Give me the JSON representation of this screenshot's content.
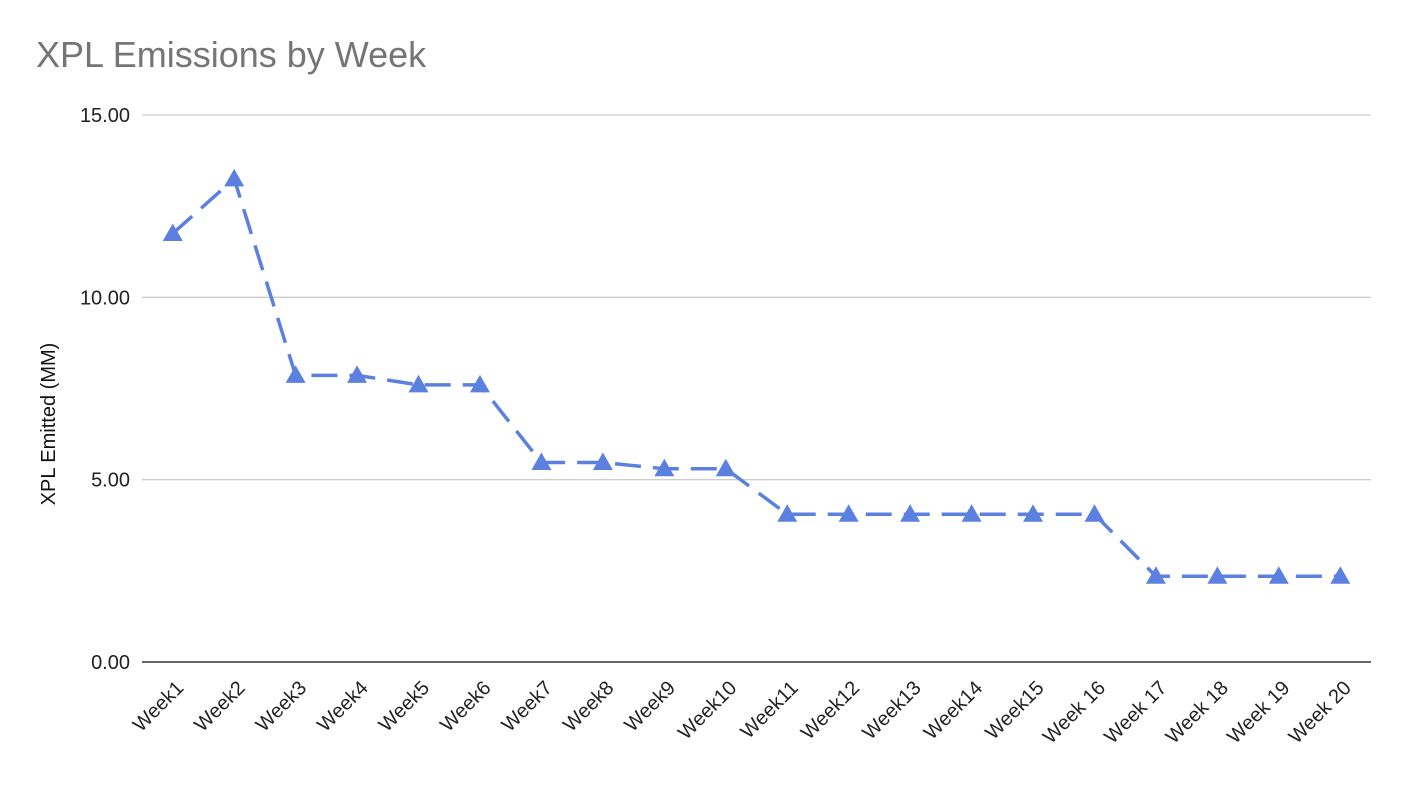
{
  "chart_data": {
    "type": "line",
    "title": "XPL Emissions by Week",
    "xlabel": "",
    "ylabel": "XPL Emitted (MM)",
    "ylim": [
      0,
      15
    ],
    "yticks": [
      "0.00",
      "5.00",
      "10.00",
      "15.00"
    ],
    "grid": true,
    "legend": "none",
    "categories": [
      "Week1",
      "Week2",
      "Week3",
      "Week4",
      "Week5",
      "Week6",
      "Week7",
      "Week8",
      "Week9",
      "Week10",
      "Week11",
      "Week12",
      "Week13",
      "Week14",
      "Week15",
      "Week 16",
      "Week 17",
      "Week 18",
      "Week 19",
      "Week 20"
    ],
    "series": [
      {
        "color": "#5b80e0",
        "line_style": "dashed",
        "marker": "triangle",
        "values": [
          11.75,
          13.25,
          7.86,
          7.86,
          7.6,
          7.6,
          5.47,
          5.47,
          5.3,
          5.3,
          4.05,
          4.05,
          4.05,
          4.05,
          4.05,
          4.05,
          2.35,
          2.35,
          2.35,
          2.35
        ]
      }
    ]
  }
}
